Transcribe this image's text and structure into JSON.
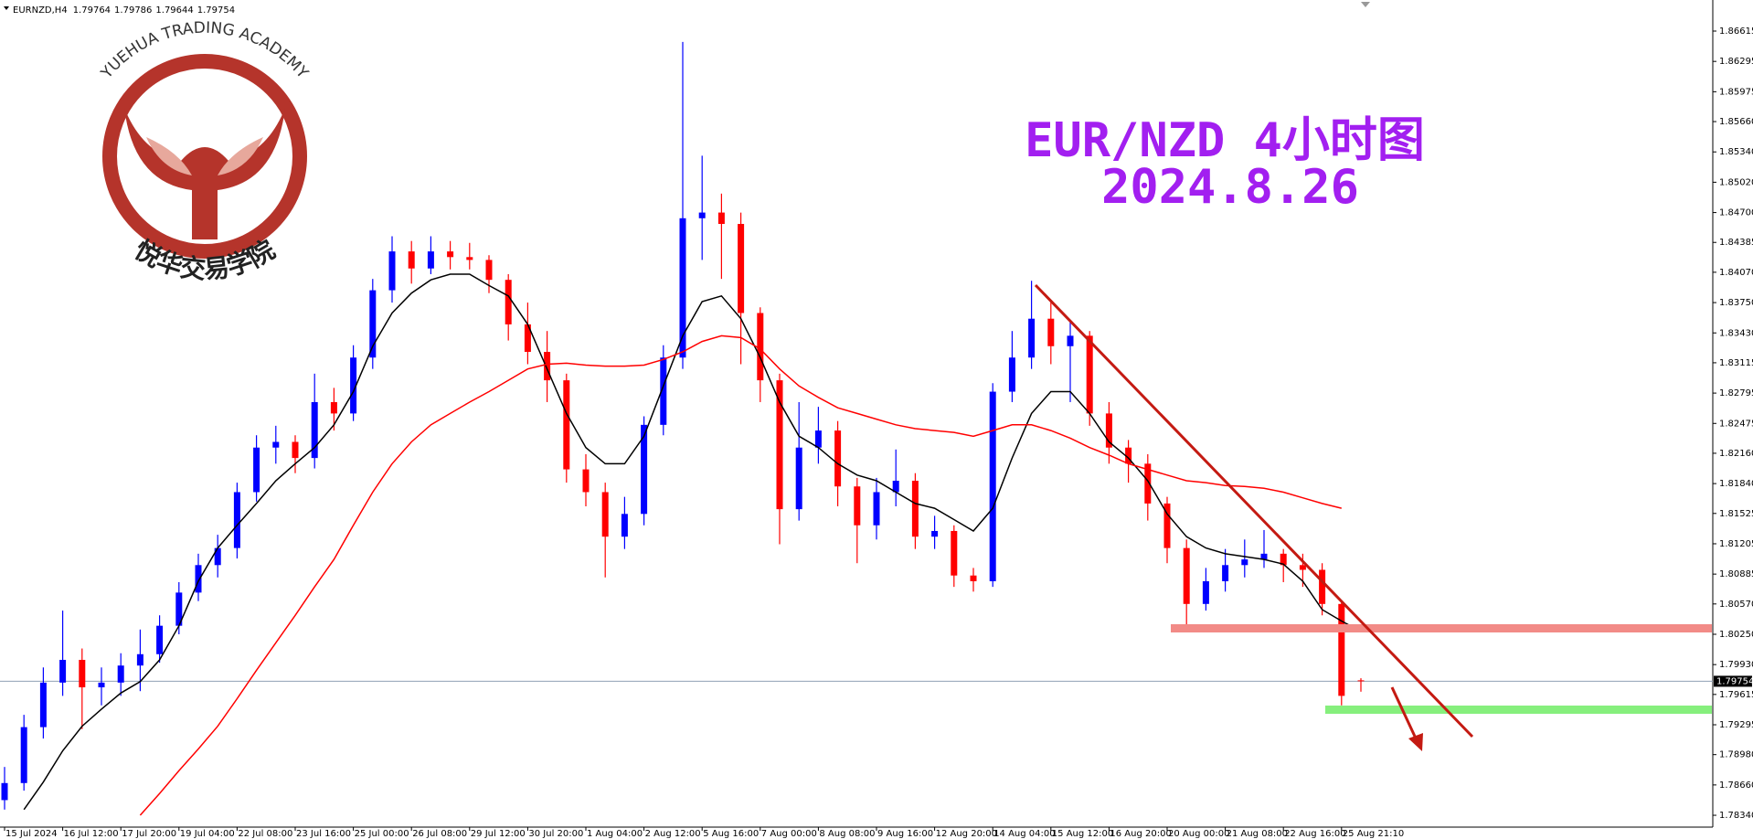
{
  "header": {
    "symbol": "EURNZD,H4"
  },
  "logo": {
    "name_en": "YUEHUA TRADING ACADEMY",
    "name_cn": "悦华交易学院"
  },
  "chart_data": {
    "type": "candlestick",
    "title": "EUR/NZD 4小时图",
    "subtitle": "2024.8.26",
    "up_color": "#0000ff",
    "down_color": "#ff0000",
    "categories": [
      "15 Jul 2024",
      null,
      null,
      "16 Jul 12:00",
      null,
      null,
      "17 Jul 20:00",
      null,
      null,
      "19 Jul 04:00",
      null,
      null,
      "22 Jul 08:00",
      null,
      null,
      "23 Jul 16:00",
      null,
      null,
      "25 Jul 00:00",
      null,
      null,
      "26 Jul 08:00",
      null,
      null,
      "29 Jul 12:00",
      null,
      null,
      "30 Jul 20:00",
      null,
      null,
      "1 Aug 04:00",
      null,
      null,
      "2 Aug 12:00",
      null,
      null,
      "5 Aug 16:00",
      null,
      null,
      "7 Aug 00:00",
      null,
      null,
      "8 Aug 08:00",
      null,
      null,
      "9 Aug 16:00",
      null,
      null,
      "12 Aug 20:00",
      null,
      null,
      "14 Aug 04:00",
      null,
      null,
      "15 Aug 12:00",
      null,
      null,
      "16 Aug 20:00",
      null,
      null,
      "20 Aug 00:00",
      null,
      null,
      "21 Aug 08:00",
      null,
      null,
      "22 Aug 16:00",
      null,
      null,
      "25 Aug 21:10",
      null
    ],
    "open": [
      1.785,
      1.7868,
      1.7927,
      1.7974,
      1.7998,
      1.7969,
      1.7974,
      1.7992,
      1.8004,
      1.8034,
      1.8069,
      1.8098,
      1.8116,
      1.8175,
      1.8222,
      1.8228,
      1.8211,
      1.827,
      1.8258,
      1.8317,
      1.8388,
      1.8429,
      1.8411,
      1.8429,
      1.8423,
      1.842,
      1.8399,
      1.8352,
      1.8323,
      1.8293,
      1.8199,
      1.8175,
      1.8128,
      1.8152,
      1.8246,
      1.8317,
      1.8464,
      1.847,
      1.8458,
      1.8364,
      1.8293,
      1.8157,
      1.8222,
      1.824,
      1.8181,
      1.814,
      1.8175,
      1.8187,
      1.8128,
      1.8134,
      1.8087,
      1.8081,
      1.8281,
      1.8317,
      1.8358,
      1.8329,
      1.834,
      1.8258,
      1.8222,
      1.8205,
      1.8163,
      1.8116,
      1.8057,
      1.8081,
      1.8098,
      1.8104,
      1.811,
      1.8098,
      1.8093,
      1.8057,
      1.79764
    ],
    "high": [
      1.7885,
      1.794,
      1.799,
      1.805,
      1.801,
      1.799,
      1.8005,
      1.803,
      1.8045,
      1.808,
      1.811,
      1.813,
      1.8185,
      1.8235,
      1.8245,
      1.8235,
      1.83,
      1.8285,
      1.833,
      1.84,
      1.8445,
      1.844,
      1.8445,
      1.844,
      1.8438,
      1.8425,
      1.8405,
      1.8375,
      1.8345,
      1.83,
      1.8215,
      1.8185,
      1.817,
      1.8255,
      1.833,
      1.865,
      1.853,
      1.849,
      1.847,
      1.837,
      1.83,
      1.827,
      1.8265,
      1.825,
      1.819,
      1.819,
      1.822,
      1.8195,
      1.815,
      1.814,
      1.8095,
      1.829,
      1.8345,
      1.8398,
      1.8375,
      1.8355,
      1.8345,
      1.827,
      1.823,
      1.8215,
      1.817,
      1.8125,
      1.8095,
      1.8115,
      1.8125,
      1.8135,
      1.8115,
      1.811,
      1.81,
      1.806,
      1.79786
    ],
    "low": [
      1.784,
      1.786,
      1.7915,
      1.796,
      1.7925,
      1.795,
      1.796,
      1.7965,
      1.7995,
      1.8025,
      1.806,
      1.8085,
      1.8105,
      1.8165,
      1.8205,
      1.8195,
      1.82,
      1.824,
      1.825,
      1.8305,
      1.8375,
      1.8395,
      1.8405,
      1.841,
      1.841,
      1.8385,
      1.8335,
      1.831,
      1.827,
      1.8185,
      1.816,
      1.8085,
      1.8115,
      1.814,
      1.8235,
      1.8305,
      1.842,
      1.84,
      1.831,
      1.827,
      1.812,
      1.8145,
      1.8205,
      1.816,
      1.81,
      1.8125,
      1.816,
      1.8115,
      1.8115,
      1.8075,
      1.807,
      1.8075,
      1.827,
      1.8305,
      1.831,
      1.827,
      1.8245,
      1.8205,
      1.8185,
      1.8145,
      1.81,
      1.8035,
      1.805,
      1.807,
      1.8085,
      1.8095,
      1.808,
      1.8075,
      1.8045,
      1.795,
      1.79644
    ],
    "close": [
      1.7868,
      1.7927,
      1.7974,
      1.7998,
      1.7969,
      1.7974,
      1.7992,
      1.8004,
      1.8034,
      1.8069,
      1.8098,
      1.8116,
      1.8175,
      1.8222,
      1.8228,
      1.8211,
      1.827,
      1.8258,
      1.8317,
      1.8388,
      1.8429,
      1.8411,
      1.8429,
      1.8423,
      1.842,
      1.8399,
      1.8352,
      1.8323,
      1.8293,
      1.8199,
      1.8175,
      1.8128,
      1.8152,
      1.8246,
      1.8317,
      1.8464,
      1.847,
      1.8458,
      1.8364,
      1.8293,
      1.8157,
      1.8222,
      1.824,
      1.8181,
      1.814,
      1.8175,
      1.8187,
      1.8128,
      1.8134,
      1.8087,
      1.8081,
      1.8281,
      1.8317,
      1.8358,
      1.8329,
      1.834,
      1.8258,
      1.8222,
      1.8205,
      1.8163,
      1.8116,
      1.8057,
      1.8081,
      1.8098,
      1.8104,
      1.811,
      1.8098,
      1.8093,
      1.8057,
      1.796,
      1.79754
    ],
    "overlays": [
      {
        "color": "#000000",
        "values": [
          null,
          1.784,
          1.7869,
          1.7902,
          1.7928,
          1.7946,
          1.7963,
          1.7975,
          1.7998,
          1.8034,
          1.8081,
          1.8116,
          1.814,
          1.8163,
          1.8187,
          1.8205,
          1.8222,
          1.8246,
          1.8281,
          1.8329,
          1.8364,
          1.8385,
          1.8399,
          1.8405,
          1.8405,
          1.8393,
          1.8382,
          1.8352,
          1.8305,
          1.8258,
          1.8222,
          1.8205,
          1.8205,
          1.8234,
          1.8287,
          1.834,
          1.8376,
          1.8382,
          1.8358,
          1.8317,
          1.827,
          1.8234,
          1.8222,
          1.8205,
          1.8193,
          1.8187,
          1.8175,
          1.8163,
          1.8158,
          1.8146,
          1.8134,
          1.8158,
          1.8211,
          1.8258,
          1.8281,
          1.8281,
          1.8258,
          1.8228,
          1.8211,
          1.8187,
          1.8152,
          1.8128,
          1.8116,
          1.811,
          1.8107,
          1.8104,
          1.8099,
          1.8081,
          1.8051,
          1.8039,
          1.8028
        ]
      },
      {
        "color": "#ff0000",
        "values": [
          null,
          null,
          null,
          null,
          null,
          null,
          null,
          1.7834,
          1.7857,
          1.7881,
          1.7904,
          1.7928,
          1.7957,
          1.7987,
          1.8016,
          1.8045,
          1.8075,
          1.8104,
          1.814,
          1.8175,
          1.8205,
          1.8228,
          1.8246,
          1.8258,
          1.827,
          1.8281,
          1.8293,
          1.8305,
          1.831,
          1.8311,
          1.8309,
          1.8308,
          1.8308,
          1.8309,
          1.8315,
          1.8323,
          1.8334,
          1.834,
          1.8338,
          1.8326,
          1.8305,
          1.8287,
          1.8275,
          1.8264,
          1.8258,
          1.8252,
          1.8246,
          1.8242,
          1.824,
          1.8238,
          1.8234,
          1.824,
          1.8246,
          1.8246,
          1.824,
          1.8232,
          1.8222,
          1.8214,
          1.8205,
          1.8199,
          1.8193,
          1.8187,
          1.8185,
          1.8182,
          1.8181,
          1.8179,
          1.8175,
          1.8169,
          1.8163,
          1.8158,
          null
        ]
      }
    ],
    "current_price": 1.79754,
    "ylim": [
      1.78215,
      1.86943
    ],
    "yticks": [
      1.86615,
      1.86295,
      1.85975,
      {
        "value": 1.8566,
        "label": "1.85660"
      },
      {
        "value": 1.8534,
        "label": "1.85340"
      },
      {
        "value": 1.8502,
        "label": "1.85020"
      },
      {
        "value": 1.847,
        "label": "1.84700"
      },
      1.84385,
      {
        "value": 1.8407,
        "label": "1.84070"
      },
      {
        "value": 1.8375,
        "label": "1.83750"
      },
      {
        "value": 1.8343,
        "label": "1.83430"
      },
      1.83115,
      1.82795,
      1.82475,
      {
        "value": 1.8216,
        "label": "1.82160"
      },
      {
        "value": 1.8184,
        "label": "1.81840"
      },
      1.81525,
      1.81205,
      1.80885,
      {
        "value": 1.8057,
        "label": "1.80570"
      },
      {
        "value": 1.8025,
        "label": "1.80250"
      },
      {
        "value": 1.7993,
        "label": "1.79930"
      },
      1.79615,
      1.79295,
      {
        "value": 1.7898,
        "label": "1.78980"
      },
      {
        "value": 1.7866,
        "label": "1.78660"
      },
      {
        "value": 1.7834,
        "label": "1.78340"
      }
    ]
  }
}
